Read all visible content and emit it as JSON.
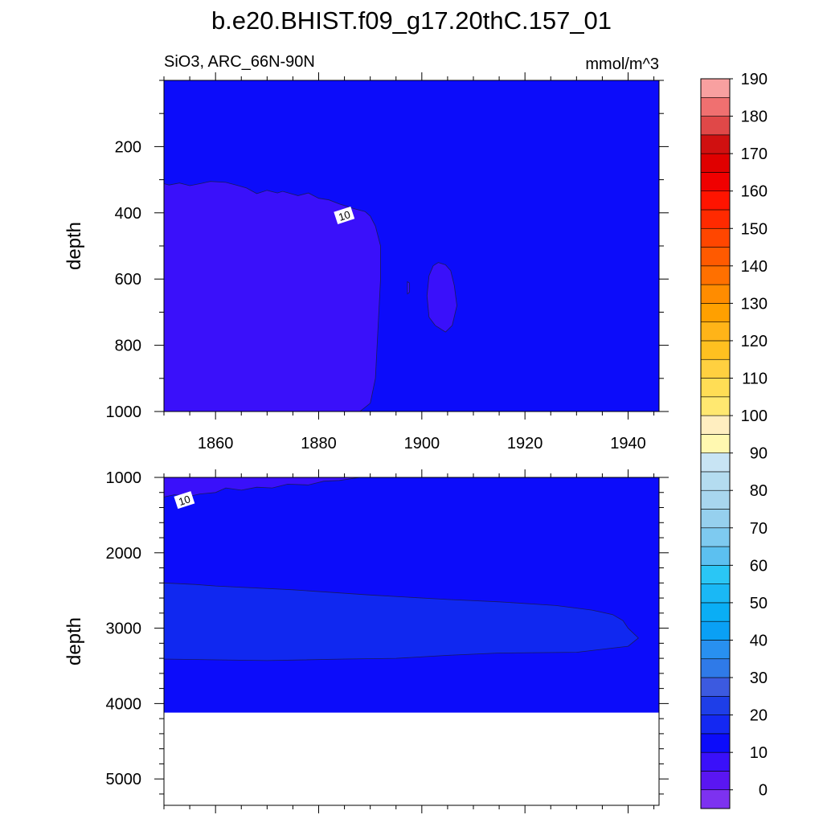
{
  "title": "b.e20.BHIST.f09_g17.20thC.157_01",
  "left_subtitle": "SiO3, ARC_66N-90N",
  "units": "mmol/m^3",
  "chart_data": [
    {
      "type": "contour",
      "panel": "upper",
      "ylabel": "depth",
      "xlim": [
        1850,
        1946
      ],
      "ylim": [
        1000,
        0
      ],
      "xticks": [
        1860,
        1880,
        1900,
        1920,
        1940
      ],
      "yticks": [
        200,
        400,
        600,
        800,
        1000
      ],
      "contour_labels": [
        {
          "value": "10",
          "x": 1885,
          "y": 410
        }
      ],
      "regions": [
        {
          "range": "0-10",
          "color": "#3a10fa",
          "x": [
            1850,
            1851,
            1853,
            1855,
            1857,
            1859,
            1862,
            1864,
            1866,
            1868,
            1870,
            1872,
            1873,
            1876,
            1878,
            1880,
            1882,
            1884,
            1887,
            1889,
            1890,
            1891,
            1892,
            1892,
            1891,
            1890,
            1888,
            1850
          ],
          "y": [
            312,
            316,
            310,
            318,
            312,
            305,
            308,
            316,
            325,
            342,
            332,
            340,
            335,
            348,
            340,
            356,
            361,
            373,
            388,
            396,
            410,
            440,
            500,
            600,
            900,
            975,
            1000,
            1000
          ]
        },
        {
          "range": "0-10",
          "color": "#3a10fa",
          "x": [
            1897.2,
            1897.6,
            1897.6,
            1897.2
          ],
          "y": [
            608,
            612,
            640,
            645
          ]
        },
        {
          "range": "0-10",
          "color": "#3a10fa",
          "x": [
            1903.2,
            1904.6,
            1905.6,
            1906.3,
            1906.8,
            1905.9,
            1904.6,
            1902.6,
            1901.4,
            1901.0,
            1901.4,
            1902.2
          ],
          "y": [
            550,
            557,
            575,
            620,
            680,
            740,
            760,
            740,
            715,
            650,
            590,
            560
          ]
        }
      ]
    },
    {
      "type": "contour",
      "panel": "lower",
      "ylabel": "depth",
      "xlim": [
        1850,
        1946
      ],
      "ylim": [
        5350,
        1000
      ],
      "yticks": [
        1000,
        2000,
        3000,
        4000,
        5000
      ],
      "data_bottom_depth": 4120,
      "contour_labels": [
        {
          "value": "10",
          "x": 1854,
          "y": 1310
        }
      ],
      "regions": [
        {
          "range": "0-10",
          "color": "#3a10fa",
          "x": [
            1850,
            1850,
            1852,
            1855,
            1857,
            1860,
            1862,
            1865,
            1868,
            1871,
            1874,
            1878,
            1881,
            1884,
            1888
          ],
          "y": [
            1000,
            1260,
            1230,
            1250,
            1220,
            1200,
            1140,
            1170,
            1130,
            1140,
            1090,
            1100,
            1050,
            1040,
            1000
          ]
        },
        {
          "range": "20-30",
          "color": "#1028f0",
          "x": [
            1850,
            1856,
            1860,
            1875,
            1890,
            1905,
            1915,
            1926,
            1933,
            1937,
            1939,
            1940,
            1942,
            1940,
            1930,
            1915,
            1905,
            1895,
            1885,
            1870,
            1850
          ],
          "y": [
            2400,
            2420,
            2440,
            2490,
            2560,
            2620,
            2650,
            2700,
            2760,
            2820,
            2900,
            3000,
            3130,
            3240,
            3320,
            3330,
            3360,
            3400,
            3410,
            3430,
            3410
          ]
        }
      ]
    },
    {
      "type": "colorbar",
      "labels": [
        "0",
        "10",
        "20",
        "30",
        "40",
        "50",
        "60",
        "70",
        "80",
        "90",
        "100",
        "110",
        "120",
        "130",
        "140",
        "150",
        "160",
        "170",
        "180",
        "190"
      ],
      "colors": [
        "#7d32f0",
        "#5a16f2",
        "#3a10fa",
        "#0c0cfa",
        "#1428f2",
        "#1e3ee8",
        "#3c5ae0",
        "#2f7ae8",
        "#2890f0",
        "#0aa0f5",
        "#0aaef5",
        "#1ab8f5",
        "#2ac6f5",
        "#5cc0f0",
        "#7ecaf0",
        "#96d0ee",
        "#a8d6ee",
        "#b4dcf0",
        "#c8e4f4",
        "#fff8b0",
        "#ffeec0",
        "#ffe870",
        "#ffdd55",
        "#ffd040",
        "#ffc020",
        "#ffb418",
        "#ffa000",
        "#ff8c00",
        "#ff7000",
        "#ff5a00",
        "#ff4600",
        "#ff2a00",
        "#ff1400",
        "#f00000",
        "#e00000",
        "#d01010",
        "#e04848",
        "#f07070",
        "#f8a0a0"
      ]
    }
  ]
}
